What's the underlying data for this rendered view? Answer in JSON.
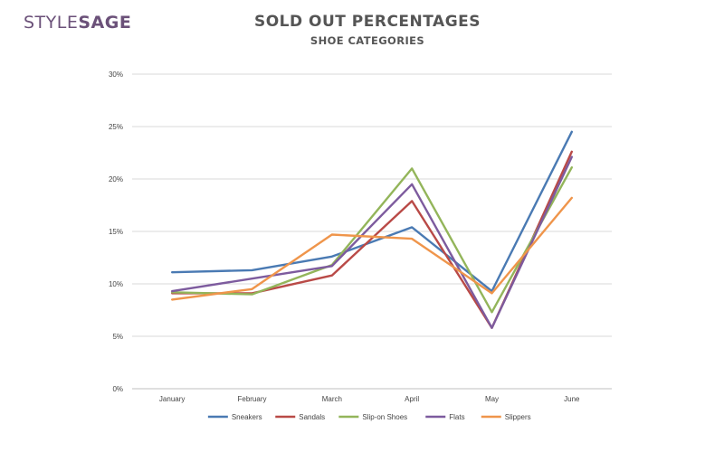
{
  "brand": {
    "part1": "STYLE",
    "part2": "SAGE"
  },
  "chart_data": {
    "type": "line",
    "title": "SOLD OUT PERCENTAGES",
    "subtitle": "SHOE CATEGORIES",
    "categories": [
      "January",
      "February",
      "March",
      "April",
      "May",
      "June"
    ],
    "ylim": [
      0,
      30
    ],
    "yticks": [
      0,
      5,
      10,
      15,
      20,
      25,
      30
    ],
    "ytick_labels": [
      "0%",
      "5%",
      "10%",
      "15%",
      "20%",
      "25%",
      "30%"
    ],
    "grid": true,
    "legend_position": "bottom",
    "series": [
      {
        "name": "Sneakers",
        "color": "#4a7ab3",
        "values": [
          11.1,
          11.3,
          12.6,
          15.4,
          9.3,
          24.5
        ]
      },
      {
        "name": "Sandals",
        "color": "#b94a47",
        "values": [
          9.1,
          9.1,
          10.8,
          17.9,
          5.8,
          22.6
        ]
      },
      {
        "name": "Slip-on Shoes",
        "color": "#93b55a",
        "values": [
          9.2,
          9.0,
          11.8,
          21.0,
          7.3,
          21.1
        ]
      },
      {
        "name": "Flats",
        "color": "#7d5b9e",
        "values": [
          9.3,
          10.5,
          11.7,
          19.5,
          5.8,
          22.1
        ]
      },
      {
        "name": "Slippers",
        "color": "#ef954b",
        "values": [
          8.5,
          9.5,
          14.7,
          14.3,
          9.1,
          18.2
        ]
      }
    ]
  }
}
